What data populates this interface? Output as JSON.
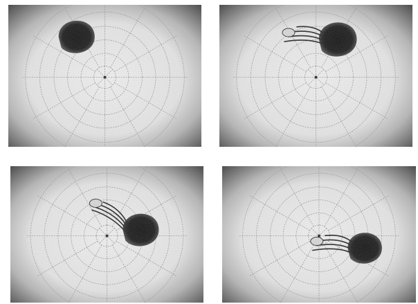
{
  "figure": {
    "panel_count": 4,
    "colors": {
      "background": "#ffffff",
      "vignette_dark": "#3a3a3a",
      "disk_light": "#f2f2f2",
      "grid_line": "#9a9a9a",
      "hole": "#141414"
    },
    "panels": [
      {
        "name": "panel-1",
        "hole_angle_deg": 235,
        "hole_r_frac": 0.62,
        "hole_size": 1.0,
        "filament": false
      },
      {
        "name": "panel-2",
        "hole_angle_deg": 300,
        "hole_r_frac": 0.55,
        "hole_size": 1.05,
        "filament": true,
        "filament_dir": "left"
      },
      {
        "name": "panel-3",
        "hole_angle_deg": 350,
        "hole_r_frac": 0.45,
        "hole_size": 1.0,
        "filament": true,
        "filament_dir": "up-left"
      },
      {
        "name": "panel-4",
        "hole_angle_deg": 15,
        "hole_r_frac": 0.62,
        "hole_size": 0.95,
        "filament": true,
        "filament_dir": "left"
      }
    ]
  }
}
